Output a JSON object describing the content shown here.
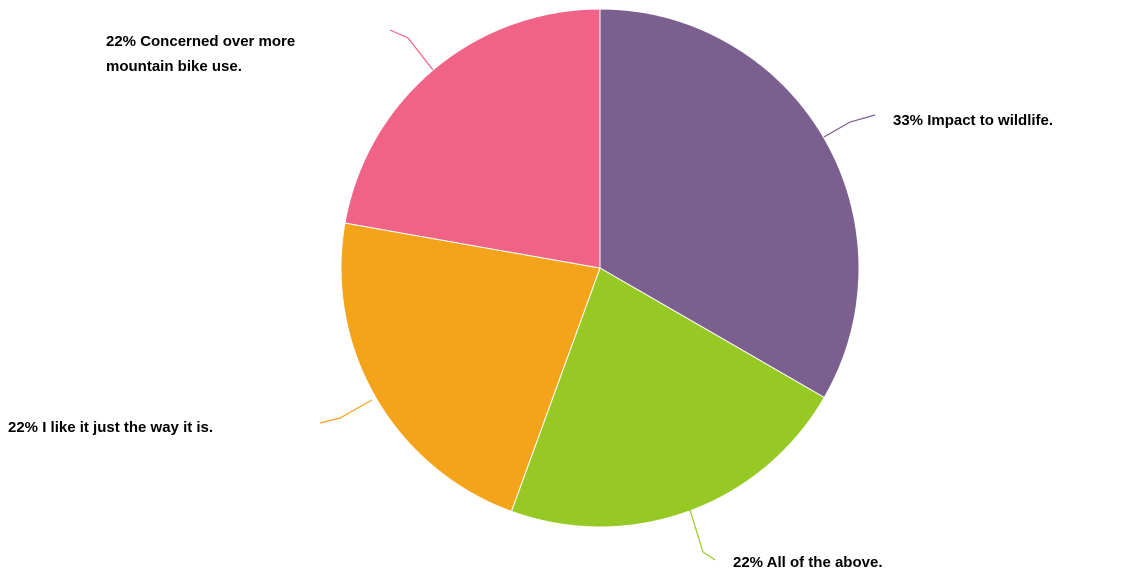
{
  "chart_data": {
    "type": "pie",
    "title": "",
    "slices": [
      {
        "label": "33% Impact to wildlife.",
        "value": 33,
        "color": "#7B5F8F"
      },
      {
        "label": "22% All of the above.",
        "value": 22,
        "color": "#97C924"
      },
      {
        "label": "22% I like it just the way it is.",
        "value": 22,
        "color": "#F4A41B"
      },
      {
        "label_lines": [
          "22% Concerned over more",
          "mountain bike use."
        ],
        "value": 22,
        "color": "#F06386"
      }
    ],
    "start_angle": "12 o'clock",
    "direction": "clockwise",
    "legend": "none",
    "slice_border_color": "#ffffff"
  }
}
